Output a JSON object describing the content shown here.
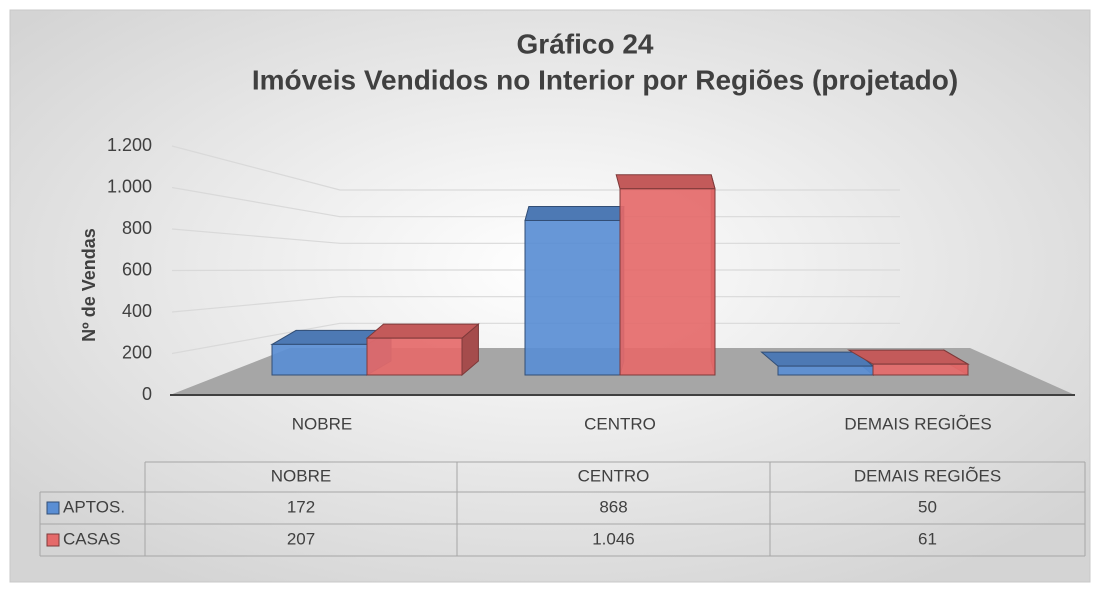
{
  "chart_data": {
    "type": "bar3d",
    "title": "Gráfico 24",
    "subtitle": "Imóveis Vendidos no Interior por Regiões (projetado)",
    "y_label": "Nº de Vendas",
    "categories": [
      "NOBRE",
      "CENTRO",
      "DEMAIS REGIÕES"
    ],
    "series": [
      {
        "name": "APTOS.",
        "color": "#5a8ed4",
        "values": [
          172,
          868,
          50
        ]
      },
      {
        "name": "CASAS",
        "color": "#e56a6a",
        "values": [
          207,
          1046,
          61
        ],
        "value_labels": [
          "207",
          "1.046",
          "61"
        ]
      }
    ],
    "ylim": [
      0,
      1200
    ],
    "yticks": [
      0,
      200,
      400,
      600,
      800,
      {
        "value": 1000,
        "label": "1.000"
      },
      {
        "value": 1200,
        "label": "1.200"
      }
    ],
    "grid": true,
    "data_table": true
  }
}
